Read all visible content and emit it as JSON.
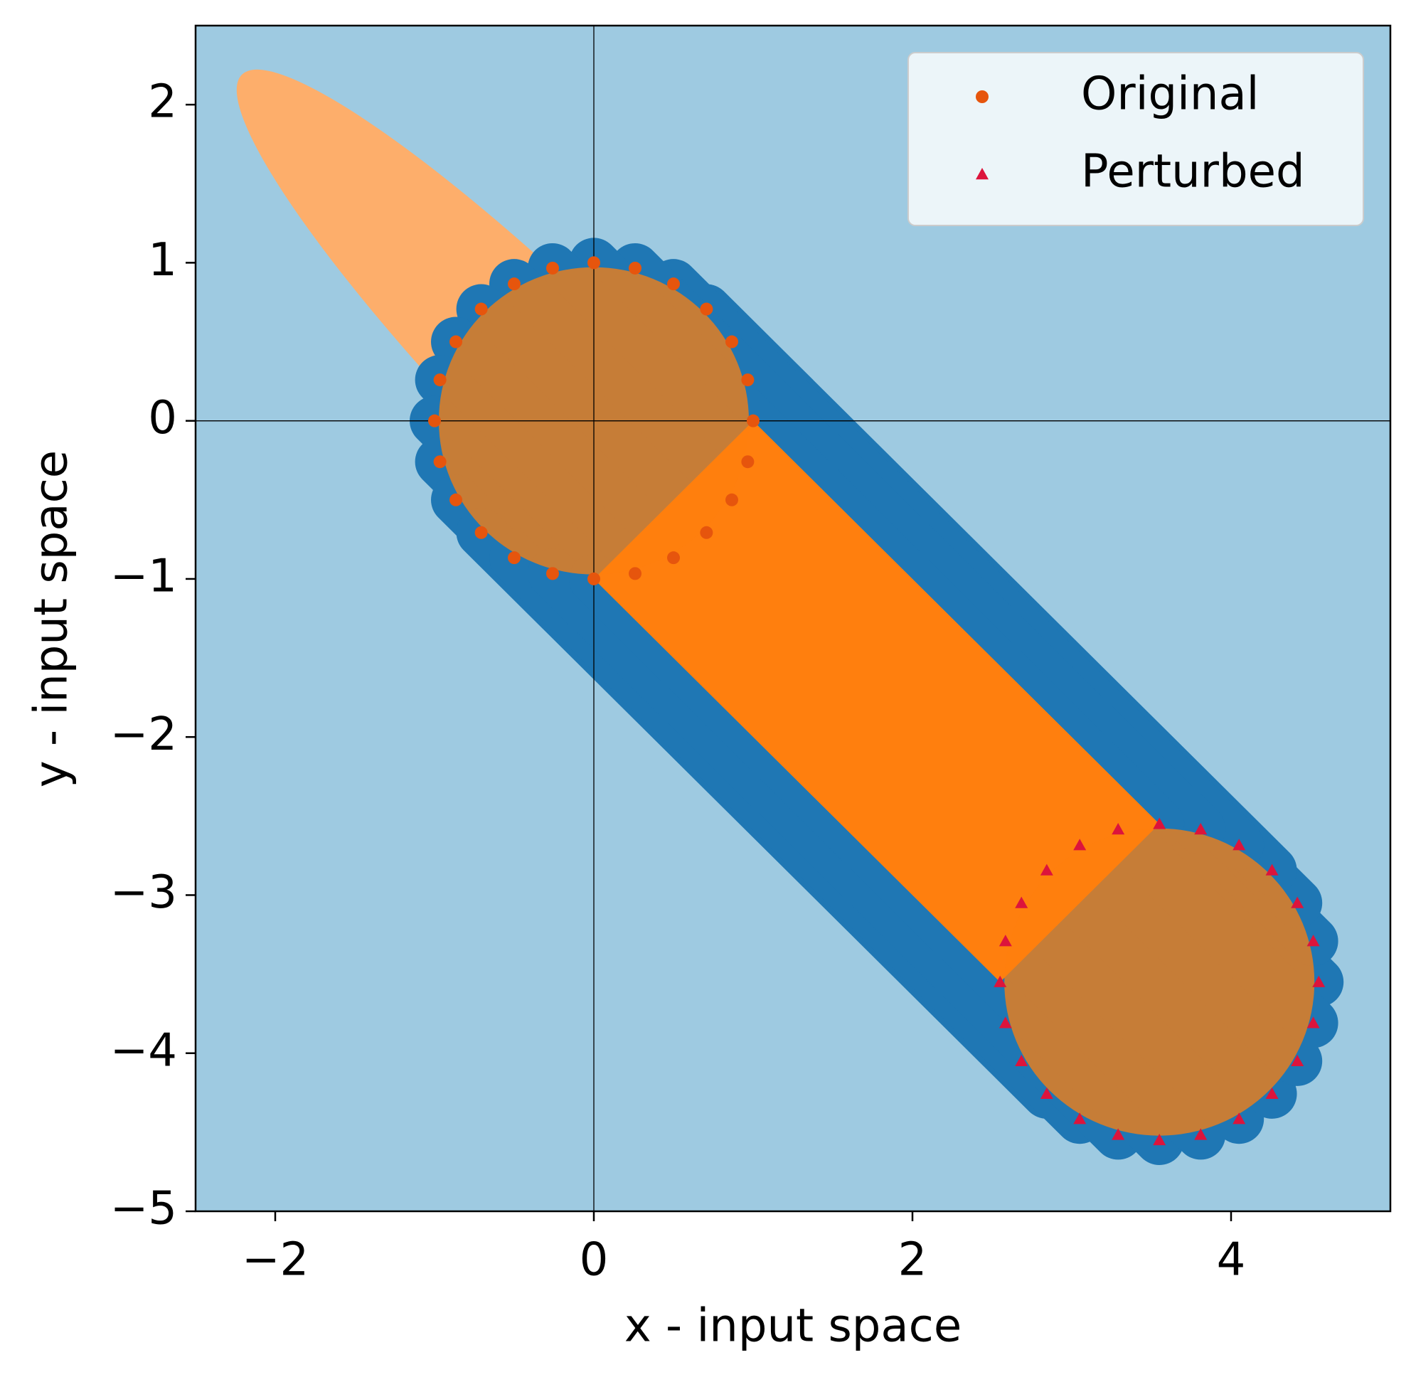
{
  "chart_data": {
    "type": "scatter",
    "xlabel": "x - input space",
    "ylabel": "y - input space",
    "xlim": [
      -2.5,
      5
    ],
    "ylim": [
      -5,
      2.5
    ],
    "xticks": [
      {
        "value": -2,
        "label": "−2"
      },
      0,
      2,
      4
    ],
    "yticks": [
      {
        "value": -5,
        "label": "−5"
      },
      {
        "value": -4,
        "label": "−4"
      },
      {
        "value": -3,
        "label": "−3"
      },
      {
        "value": -2,
        "label": "−2"
      },
      {
        "value": -1,
        "label": "−1"
      },
      0,
      1,
      2
    ],
    "legend": "upper right",
    "series": [
      {
        "name": "Original",
        "color": "#e6550d",
        "marker": "circle",
        "x": [
          1,
          0.966,
          0.866,
          0.707,
          0.5,
          0.259,
          0,
          -0.259,
          -0.5,
          -0.707,
          -0.866,
          -0.966,
          -1,
          -0.966,
          -0.866,
          -0.707,
          -0.5,
          -0.259,
          0,
          0.259,
          0.5,
          0.707,
          0.866,
          0.966
        ],
        "y": [
          0,
          0.259,
          0.5,
          0.707,
          0.866,
          0.966,
          1,
          0.966,
          0.866,
          0.707,
          0.5,
          0.259,
          0,
          -0.259,
          -0.5,
          -0.707,
          -0.866,
          -0.966,
          -1,
          -0.966,
          -0.866,
          -0.707,
          -0.5,
          -0.259
        ]
      },
      {
        "name": "Perturbed",
        "color": "#dc143c",
        "marker": "triangle",
        "x": [
          4.55,
          4.516,
          4.416,
          4.257,
          4.05,
          3.809,
          3.55,
          3.291,
          3.05,
          2.843,
          2.684,
          2.584,
          2.55,
          2.584,
          2.684,
          2.843,
          3.05,
          3.291,
          3.55,
          3.809,
          4.05,
          4.257,
          4.416,
          4.516
        ],
        "y": [
          -3.55,
          -3.291,
          -3.05,
          -2.843,
          -2.684,
          -2.584,
          -2.55,
          -2.584,
          -2.684,
          -2.843,
          -3.05,
          -3.291,
          -3.55,
          -3.809,
          -4.05,
          -4.257,
          -4.416,
          -4.516,
          -4.55,
          -4.516,
          -4.416,
          -4.257,
          -4.05,
          -3.809
        ]
      }
    ],
    "link_color": "#1f77b4"
  }
}
